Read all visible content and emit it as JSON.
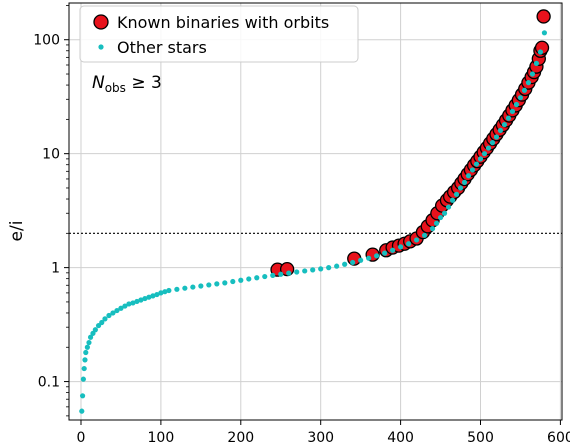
{
  "chart_data": {
    "type": "scatter",
    "ylabel": "e/i",
    "xlabel": "",
    "yscale": "log",
    "xlim": [
      -15,
      602
    ],
    "ylim": [
      0.046,
      210
    ],
    "xticks": [
      0,
      100,
      200,
      300,
      400,
      500,
      600
    ],
    "yticks": [
      0.1,
      1,
      10,
      100
    ],
    "ytick_labels": [
      "0.1",
      "1",
      "10",
      "100"
    ],
    "grid": true,
    "legend": {
      "placement": "top-left",
      "entries": [
        {
          "label": "Known binaries with orbits",
          "color": "#e8121c",
          "edge": "#000000"
        },
        {
          "label": "Other stars",
          "color": "#17bebf"
        }
      ]
    },
    "annotation": {
      "text": "N",
      "subscript": "obs",
      "suffix": " ≥ 3"
    },
    "threshold_line": {
      "y": 2,
      "style": "dotted"
    },
    "series": [
      {
        "name": "Other stars",
        "color": "#17bebf",
        "points": [
          [
            1,
            0.055
          ],
          [
            2,
            0.075
          ],
          [
            3,
            0.105
          ],
          [
            4,
            0.13
          ],
          [
            5,
            0.155
          ],
          [
            6,
            0.18
          ],
          [
            8,
            0.2
          ],
          [
            10,
            0.22
          ],
          [
            12,
            0.245
          ],
          [
            15,
            0.265
          ],
          [
            18,
            0.285
          ],
          [
            22,
            0.31
          ],
          [
            26,
            0.33
          ],
          [
            30,
            0.355
          ],
          [
            35,
            0.38
          ],
          [
            40,
            0.4
          ],
          [
            45,
            0.42
          ],
          [
            50,
            0.44
          ],
          [
            55,
            0.46
          ],
          [
            60,
            0.48
          ],
          [
            65,
            0.49
          ],
          [
            70,
            0.505
          ],
          [
            75,
            0.52
          ],
          [
            80,
            0.535
          ],
          [
            85,
            0.55
          ],
          [
            90,
            0.565
          ],
          [
            95,
            0.58
          ],
          [
            100,
            0.6
          ],
          [
            105,
            0.615
          ],
          [
            110,
            0.63
          ],
          [
            120,
            0.645
          ],
          [
            130,
            0.66
          ],
          [
            140,
            0.675
          ],
          [
            150,
            0.69
          ],
          [
            160,
            0.705
          ],
          [
            170,
            0.72
          ],
          [
            180,
            0.735
          ],
          [
            190,
            0.755
          ],
          [
            200,
            0.775
          ],
          [
            210,
            0.795
          ],
          [
            220,
            0.815
          ],
          [
            230,
            0.835
          ],
          [
            240,
            0.855
          ],
          [
            250,
            0.875
          ],
          [
            260,
            0.895
          ],
          [
            270,
            0.915
          ],
          [
            280,
            0.935
          ],
          [
            290,
            0.955
          ],
          [
            300,
            0.975
          ],
          [
            310,
            1.0
          ],
          [
            320,
            1.03
          ],
          [
            330,
            1.07
          ],
          [
            340,
            1.11
          ],
          [
            350,
            1.16
          ],
          [
            360,
            1.21
          ],
          [
            370,
            1.27
          ],
          [
            380,
            1.34
          ],
          [
            390,
            1.42
          ],
          [
            400,
            1.52
          ],
          [
            410,
            1.62
          ],
          [
            420,
            1.75
          ],
          [
            430,
            1.92
          ],
          [
            440,
            2.2
          ],
          [
            445,
            2.45
          ],
          [
            450,
            2.75
          ],
          [
            455,
            3.0
          ],
          [
            460,
            3.4
          ],
          [
            465,
            3.9
          ],
          [
            470,
            4.4
          ],
          [
            475,
            5.0
          ],
          [
            480,
            5.6
          ],
          [
            485,
            6.4
          ],
          [
            490,
            7.2
          ],
          [
            495,
            8.1
          ],
          [
            500,
            9.0
          ],
          [
            505,
            10.0
          ],
          [
            510,
            11.2
          ],
          [
            515,
            12.5
          ],
          [
            520,
            14.0
          ],
          [
            525,
            16.0
          ],
          [
            530,
            18.0
          ],
          [
            535,
            20.5
          ],
          [
            540,
            23.5
          ],
          [
            545,
            27.0
          ],
          [
            550,
            31.0
          ],
          [
            555,
            36.0
          ],
          [
            560,
            42.0
          ],
          [
            565,
            50.0
          ],
          [
            570,
            62.0
          ],
          [
            575,
            78.0
          ],
          [
            580,
            115.0
          ]
        ]
      },
      {
        "name": "Known binaries with orbits",
        "color": "#e8121c",
        "points": [
          [
            246,
            0.96
          ],
          [
            258,
            0.97
          ],
          [
            342,
            1.2
          ],
          [
            365,
            1.3
          ],
          [
            382,
            1.42
          ],
          [
            390,
            1.5
          ],
          [
            398,
            1.56
          ],
          [
            405,
            1.62
          ],
          [
            412,
            1.7
          ],
          [
            420,
            1.8
          ],
          [
            428,
            2.05
          ],
          [
            434,
            2.3
          ],
          [
            440,
            2.6
          ],
          [
            446,
            3.0
          ],
          [
            452,
            3.5
          ],
          [
            458,
            3.9
          ],
          [
            462,
            4.2
          ],
          [
            467,
            4.6
          ],
          [
            472,
            5.0
          ],
          [
            476,
            5.5
          ],
          [
            480,
            6.0
          ],
          [
            484,
            6.6
          ],
          [
            488,
            7.2
          ],
          [
            492,
            7.9
          ],
          [
            496,
            8.6
          ],
          [
            500,
            9.4
          ],
          [
            504,
            10.3
          ],
          [
            508,
            11.2
          ],
          [
            512,
            12.3
          ],
          [
            516,
            13.5
          ],
          [
            520,
            14.8
          ],
          [
            524,
            16.2
          ],
          [
            528,
            17.8
          ],
          [
            532,
            19.6
          ],
          [
            536,
            21.6
          ],
          [
            540,
            24.0
          ],
          [
            544,
            26.5
          ],
          [
            548,
            29.5
          ],
          [
            552,
            33.0
          ],
          [
            556,
            37.0
          ],
          [
            560,
            42.0
          ],
          [
            564,
            47.0
          ],
          [
            567,
            52.0
          ],
          [
            570,
            58.0
          ],
          [
            573,
            68.0
          ],
          [
            575,
            80.0
          ],
          [
            577,
            85.0
          ],
          [
            579,
            160.0
          ]
        ]
      }
    ]
  }
}
